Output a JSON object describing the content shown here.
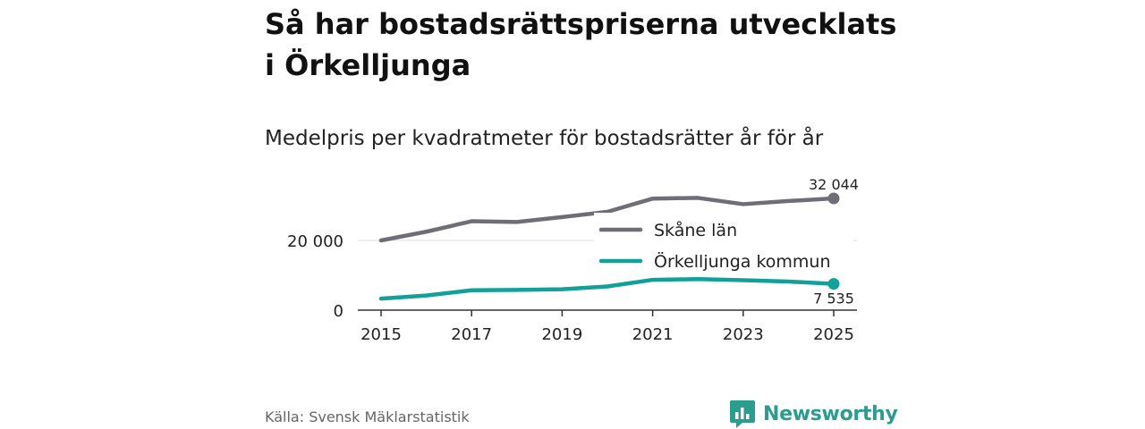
{
  "header": {
    "title": "Så har bostadsrättspriserna utvecklats i Örkelljunga",
    "subtitle": "Medelpris per kvadratmeter för bostadsrätter år för år"
  },
  "footer": {
    "source": "Källa: Svensk Mäklarstatistik",
    "brand": "Newsworthy"
  },
  "colors": {
    "skane": "#6e6e76",
    "orkelljunga": "#12a099",
    "brand": "#2a9d8f"
  },
  "chart_data": {
    "type": "line",
    "title": "Medelpris per kvadratmeter för bostadsrätter år för år",
    "x": [
      2015,
      2016,
      2017,
      2018,
      2019,
      2020,
      2021,
      2022,
      2023,
      2024,
      2025
    ],
    "x_ticks": [
      2015,
      2017,
      2019,
      2021,
      2023,
      2025
    ],
    "x_tick_labels": [
      "2015",
      "2017",
      "2019",
      "2021",
      "2023",
      "2025"
    ],
    "y_ticks": [
      0,
      20000
    ],
    "y_tick_labels": [
      "0",
      "20 000"
    ],
    "ylim": [
      0,
      35000
    ],
    "xlim": [
      2015,
      2025
    ],
    "grid": true,
    "legend": "top-right",
    "series": [
      {
        "name": "Skåne län",
        "values": [
          20000,
          22500,
          25500,
          25300,
          26700,
          28200,
          32000,
          32200,
          30400,
          31300,
          32044
        ],
        "end_label": "32 044"
      },
      {
        "name": "Örkelljunga kommun",
        "values": [
          3300,
          4200,
          5700,
          5800,
          6000,
          6800,
          8700,
          8900,
          8600,
          8200,
          7535
        ],
        "end_label": "7 535"
      }
    ]
  }
}
